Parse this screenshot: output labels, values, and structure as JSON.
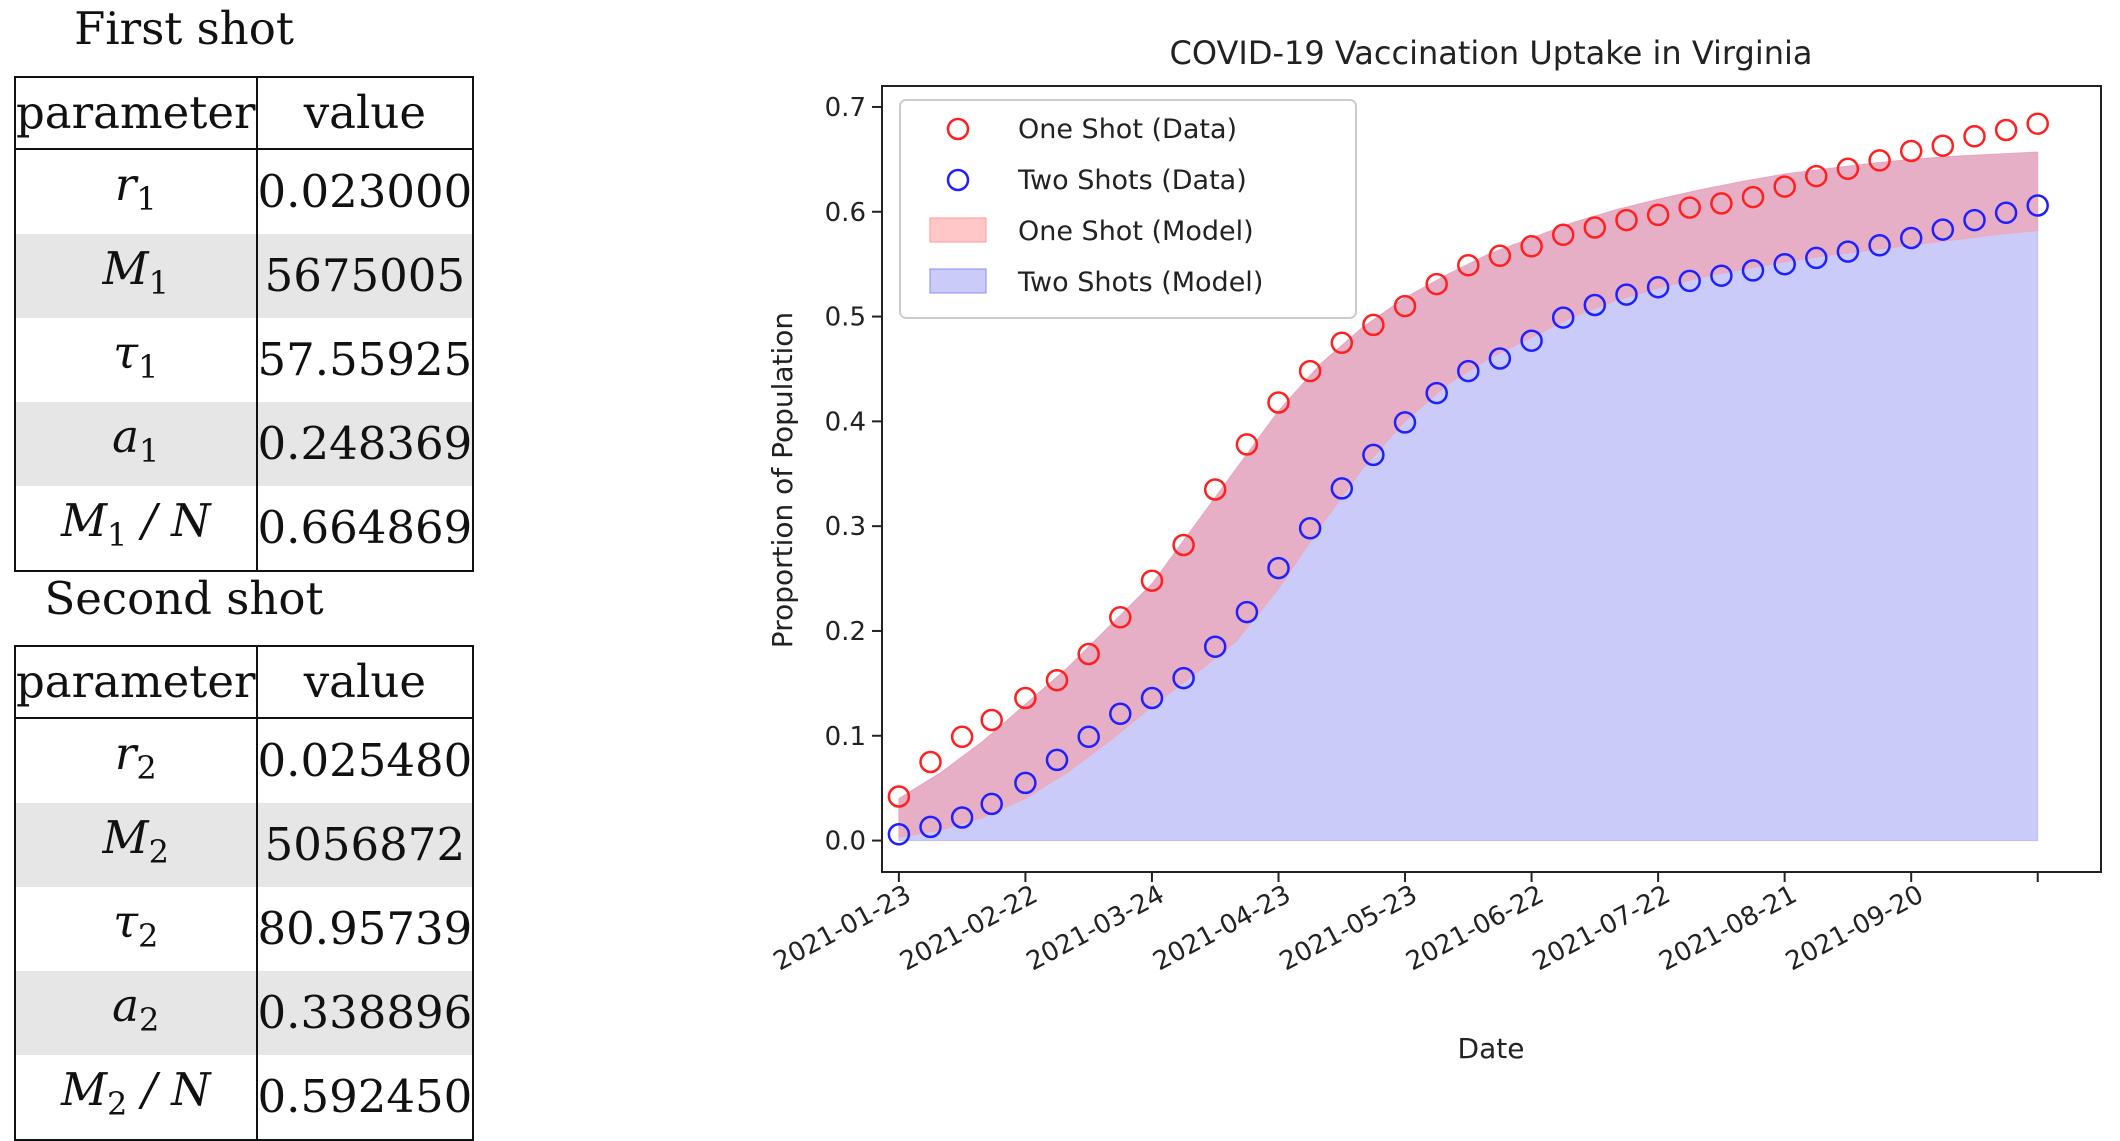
{
  "tables": [
    {
      "caption": "First shot",
      "header": [
        "parameter",
        "value"
      ],
      "rows": [
        {
          "sym": "r",
          "sub": "1",
          "post": "",
          "value": "0.023000"
        },
        {
          "sym": "M",
          "sub": "1",
          "post": "",
          "value": "5675005"
        },
        {
          "sym": "τ",
          "sub": "1",
          "post": "",
          "value": "57.55925"
        },
        {
          "sym": "a",
          "sub": "1",
          "post": "",
          "value": "0.248369"
        },
        {
          "sym": "M",
          "sub": "1",
          "post": " / N",
          "value": "0.664869"
        }
      ]
    },
    {
      "caption": "Second shot",
      "header": [
        "parameter",
        "value"
      ],
      "rows": [
        {
          "sym": "r",
          "sub": "2",
          "post": "",
          "value": "0.025480"
        },
        {
          "sym": "M",
          "sub": "2",
          "post": "",
          "value": "5056872"
        },
        {
          "sym": "τ",
          "sub": "2",
          "post": "",
          "value": "80.95739"
        },
        {
          "sym": "a",
          "sub": "2",
          "post": "",
          "value": "0.338896"
        },
        {
          "sym": "M",
          "sub": "2",
          "post": " / N",
          "value": "0.592450"
        }
      ]
    }
  ],
  "chart_data": {
    "type": "scatter",
    "title": "COVID-19 Vaccination Uptake in Virginia",
    "xlabel": "Date",
    "ylabel": "Proportion of Population",
    "x_range_days": [
      -4,
      285
    ],
    "ylim": [
      -0.03,
      0.72
    ],
    "yticks": [
      0.0,
      0.1,
      0.2,
      0.3,
      0.4,
      0.5,
      0.6,
      0.7
    ],
    "ytick_labels": [
      "0.0",
      "0.1",
      "0.2",
      "0.3",
      "0.4",
      "0.5",
      "0.6",
      "0.7"
    ],
    "xticks_days": [
      0,
      30,
      60,
      90,
      120,
      150,
      180,
      210,
      240,
      270
    ],
    "xtick_labels": [
      "2021-01-23",
      "2021-02-22",
      "2021-03-24",
      "2021-04-23",
      "2021-05-23",
      "2021-06-22",
      "2021-07-22",
      "2021-08-21",
      "2021-09-20",
      ""
    ],
    "legend_position": "top-left",
    "legend": [
      "One Shot (Data)",
      "Two Shots (Data)",
      "One Shot (Model)",
      "Two Shots (Model)"
    ],
    "colors": {
      "one": "#ff2020",
      "two": "#2020ff",
      "one_fill": "#ff9999",
      "two_fill": "#8b8bf5"
    },
    "one_shot_data": {
      "days": [
        0,
        7.5,
        15,
        22,
        30,
        37.5,
        45,
        52.5,
        60,
        67.5,
        75,
        82.5,
        90,
        97.5,
        105,
        112.5,
        120,
        127.5,
        135,
        142.5,
        150,
        157.5,
        165,
        172.5,
        180,
        187.5,
        195,
        202.5,
        210,
        217.5,
        225,
        232.5,
        240,
        247.5,
        255,
        262.5,
        270
      ],
      "values": [
        0.042,
        0.075,
        0.099,
        0.115,
        0.136,
        0.153,
        0.178,
        0.213,
        0.248,
        0.282,
        0.335,
        0.378,
        0.418,
        0.448,
        0.475,
        0.492,
        0.51,
        0.531,
        0.549,
        0.558,
        0.567,
        0.578,
        0.585,
        0.592,
        0.597,
        0.604,
        0.608,
        0.614,
        0.624,
        0.634,
        0.641,
        0.649,
        0.658,
        0.663,
        0.672,
        0.678,
        0.684
      ]
    },
    "two_shots_data": {
      "days": [
        0,
        7.5,
        15,
        22,
        30,
        37.5,
        45,
        52.5,
        60,
        67.5,
        75,
        82.5,
        90,
        97.5,
        105,
        112.5,
        120,
        127.5,
        135,
        142.5,
        150,
        157.5,
        165,
        172.5,
        180,
        187.5,
        195,
        202.5,
        210,
        217.5,
        225,
        232.5,
        240,
        247.5,
        255,
        262.5,
        270
      ],
      "values": [
        0.006,
        0.013,
        0.022,
        0.035,
        0.055,
        0.077,
        0.099,
        0.121,
        0.136,
        0.155,
        0.185,
        0.218,
        0.26,
        0.298,
        0.336,
        0.368,
        0.399,
        0.427,
        0.448,
        0.46,
        0.477,
        0.499,
        0.511,
        0.521,
        0.528,
        0.534,
        0.539,
        0.544,
        0.55,
        0.556,
        0.562,
        0.568,
        0.575,
        0.583,
        0.592,
        0.599,
        0.606
      ]
    },
    "one_shot_model": {
      "days": [
        0,
        10,
        20,
        30,
        40,
        50,
        60,
        70,
        80,
        90,
        100,
        110,
        120,
        130,
        140,
        150,
        160,
        170,
        180,
        190,
        200,
        210,
        220,
        230,
        240,
        250,
        260,
        270
      ],
      "lower": [
        0.02,
        0.03,
        0.045,
        0.065,
        0.095,
        0.13,
        0.175,
        0.225,
        0.28,
        0.335,
        0.385,
        0.425,
        0.46,
        0.49,
        0.515,
        0.535,
        0.55,
        0.562,
        0.572,
        0.58,
        0.587,
        0.592,
        0.596,
        0.6,
        0.602,
        0.604,
        0.605,
        0.606
      ],
      "upper": [
        0.04,
        0.065,
        0.095,
        0.13,
        0.165,
        0.205,
        0.245,
        0.3,
        0.355,
        0.41,
        0.455,
        0.49,
        0.518,
        0.54,
        0.56,
        0.575,
        0.59,
        0.602,
        0.612,
        0.621,
        0.629,
        0.636,
        0.641,
        0.646,
        0.65,
        0.653,
        0.655,
        0.657
      ]
    },
    "two_shots_model": {
      "days": [
        0,
        10,
        20,
        30,
        40,
        50,
        60,
        70,
        80,
        90,
        100,
        110,
        120,
        130,
        140,
        150,
        160,
        170,
        180,
        190,
        200,
        210,
        220,
        230,
        240,
        250,
        260,
        270
      ],
      "lower": [
        0.0,
        0.0,
        0.0,
        0.0,
        0.0,
        0.0,
        0.0,
        0.0,
        0.0,
        0.0,
        0.0,
        0.0,
        0.0,
        0.0,
        0.0,
        0.0,
        0.0,
        0.0,
        0.0,
        0.0,
        0.0,
        0.0,
        0.0,
        0.0,
        0.0,
        0.0,
        0.0,
        0.0
      ],
      "upper": [
        0.04,
        0.065,
        0.095,
        0.13,
        0.165,
        0.205,
        0.245,
        0.3,
        0.355,
        0.41,
        0.455,
        0.49,
        0.518,
        0.54,
        0.56,
        0.575,
        0.59,
        0.602,
        0.612,
        0.621,
        0.629,
        0.636,
        0.641,
        0.646,
        0.65,
        0.653,
        0.655,
        0.657
      ]
    },
    "two_shots_model_floor": {
      "days": [
        0,
        10,
        20,
        30,
        40,
        50,
        60,
        70,
        80,
        90,
        100,
        110,
        120,
        130,
        140,
        150,
        160,
        170,
        180,
        190,
        200,
        210,
        220,
        230,
        240,
        250,
        260,
        270
      ],
      "values": [
        0.003,
        0.01,
        0.022,
        0.04,
        0.065,
        0.095,
        0.128,
        0.158,
        0.19,
        0.24,
        0.3,
        0.355,
        0.4,
        0.435,
        0.46,
        0.48,
        0.5,
        0.515,
        0.527,
        0.537,
        0.545,
        0.552,
        0.558,
        0.563,
        0.568,
        0.573,
        0.578,
        0.582
      ]
    }
  }
}
